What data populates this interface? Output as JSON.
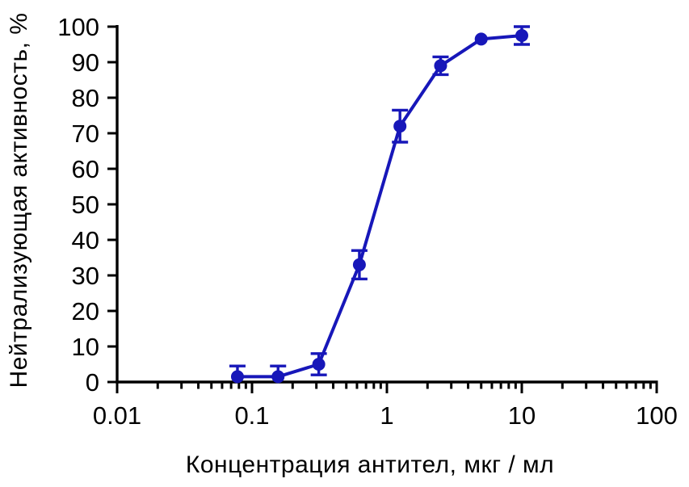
{
  "figure": {
    "background": "#ffffff"
  },
  "colors": {
    "series_blue": "#1717b9",
    "axis_black": "#000000"
  },
  "chart_data": {
    "type": "line",
    "title": "",
    "xlabel": "Концентрация антител, мкг / мл",
    "ylabel": "Нейтрализующая активность, %",
    "xscale": "log",
    "xlim": [
      0.01,
      100
    ],
    "ylim": [
      0,
      100
    ],
    "grid": false,
    "legend": null,
    "xticks_major": [
      0.01,
      0.1,
      1,
      10,
      100
    ],
    "xtick_labels": [
      "0.01",
      "0.1",
      "1",
      "10",
      "100"
    ],
    "xticks_minor_pattern": [
      2,
      3,
      4,
      5,
      6,
      7,
      8,
      9
    ],
    "yticks": [
      0,
      10,
      20,
      30,
      40,
      50,
      60,
      70,
      80,
      90,
      100
    ],
    "ytick_labels": [
      "0",
      "10",
      "20",
      "30",
      "40",
      "50",
      "60",
      "70",
      "80",
      "90",
      "100"
    ],
    "series": [
      {
        "name": "neutralizing-activity",
        "color": "#1717b9",
        "marker": "circle",
        "x": [
          0.078,
          0.156,
          0.3125,
          0.625,
          1.25,
          2.5,
          5,
          10
        ],
        "y": [
          1.5,
          1.5,
          5,
          33,
          72,
          89,
          96.5,
          97.5
        ],
        "yerr": [
          3,
          3,
          3,
          4,
          4.5,
          2.5,
          0,
          2.5
        ]
      }
    ]
  }
}
